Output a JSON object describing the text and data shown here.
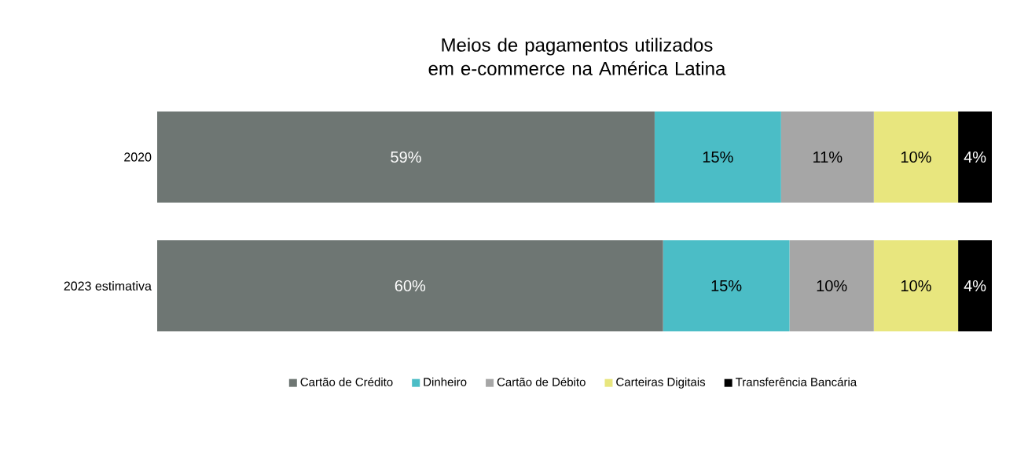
{
  "chart_data": {
    "type": "bar",
    "title": "Meios de pagamentos utilizados em e-commerce na América Latina",
    "orientation": "horizontal",
    "stacked": true,
    "legend": "bottom",
    "categories": [
      "2020",
      "2023 estimativa"
    ],
    "series": [
      {
        "name": "Cartão de Crédito",
        "color": "#6e7673",
        "values": [
          59,
          60
        ],
        "value_labels": [
          "59%",
          "60%"
        ]
      },
      {
        "name": "Dinheiro",
        "color": "#4bbdc6",
        "values": [
          15,
          15
        ],
        "value_labels": [
          "15%",
          "15%"
        ]
      },
      {
        "name": "Cartão de Débito",
        "color": "#a6a6a6",
        "values": [
          11,
          10
        ],
        "value_labels": [
          "11%",
          "10%"
        ]
      },
      {
        "name": "Carteiras Digitais",
        "color": "#e8e67e",
        "values": [
          10,
          10
        ],
        "value_labels": [
          "10%",
          "10%"
        ]
      },
      {
        "name": "Transferência Bancária",
        "color": "#000000",
        "values": [
          4,
          4
        ],
        "value_labels": [
          "4%",
          "4%"
        ]
      }
    ]
  }
}
